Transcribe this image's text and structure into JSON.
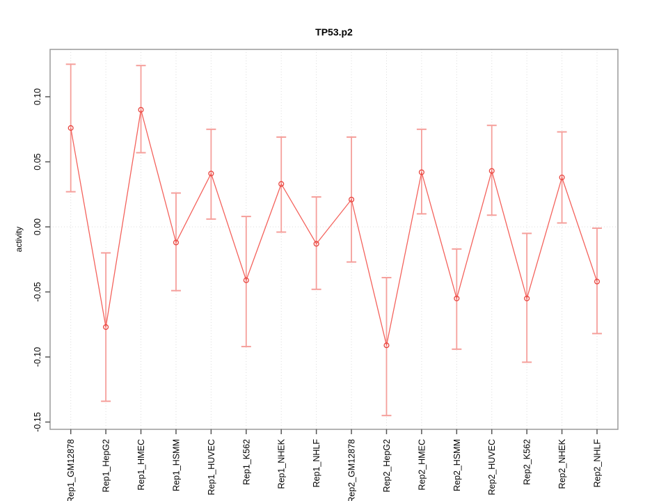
{
  "figure": {
    "background": "#ffffff"
  },
  "chart_data": {
    "type": "line",
    "title": "TP53.p2",
    "xlabel": "",
    "ylabel": "activity",
    "ylim": [
      -0.1556,
      0.1364
    ],
    "yticks": [
      0.1,
      0.05,
      0.0,
      -0.05,
      -0.1,
      -0.15
    ],
    "ytick_labels": [
      "0.10",
      "0.05",
      "0.00",
      "-0.05",
      "-0.10",
      "-0.15"
    ],
    "grid": "vertical dotted gridline at each category; dotted horizontal line at y=0; full box frame; no legend",
    "point_style": "open circle with error bars, connected by straight line segments",
    "categories": [
      "Rep1_GM12878",
      "Rep1_HepG2",
      "Rep1_HMEC",
      "Rep1_HSMM",
      "Rep1_HUVEC",
      "Rep1_K562",
      "Rep1_NHEK",
      "Rep1_NHLF",
      "Rep2_GM12878",
      "Rep2_HepG2",
      "Rep2_HMEC",
      "Rep2_HSMM",
      "Rep2_HUVEC",
      "Rep2_K562",
      "Rep2_NHEK",
      "Rep2_NHLF"
    ],
    "series": [
      {
        "name": "activity",
        "values": [
          0.076,
          -0.077,
          0.09,
          -0.012,
          0.041,
          -0.041,
          0.033,
          -0.013,
          0.021,
          -0.091,
          0.042,
          -0.055,
          0.043,
          -0.055,
          0.038,
          -0.042
        ],
        "error_high": [
          0.125,
          -0.02,
          0.124,
          0.026,
          0.075,
          0.008,
          0.069,
          0.023,
          0.069,
          -0.039,
          0.075,
          -0.017,
          0.078,
          -0.005,
          0.073,
          -0.001
        ],
        "error_low": [
          0.027,
          -0.134,
          0.057,
          -0.049,
          0.006,
          -0.092,
          -0.004,
          -0.048,
          -0.027,
          -0.145,
          0.01,
          -0.094,
          0.009,
          -0.104,
          0.003,
          -0.082
        ]
      }
    ],
    "colors": {
      "series_line": "#f4625c",
      "point_outline": "#e8453f",
      "error_bar": "#f59f9b",
      "grid": "#dcdcdc",
      "frame": "#9a9a9a",
      "tick": "#555555",
      "text": "#000000"
    }
  }
}
